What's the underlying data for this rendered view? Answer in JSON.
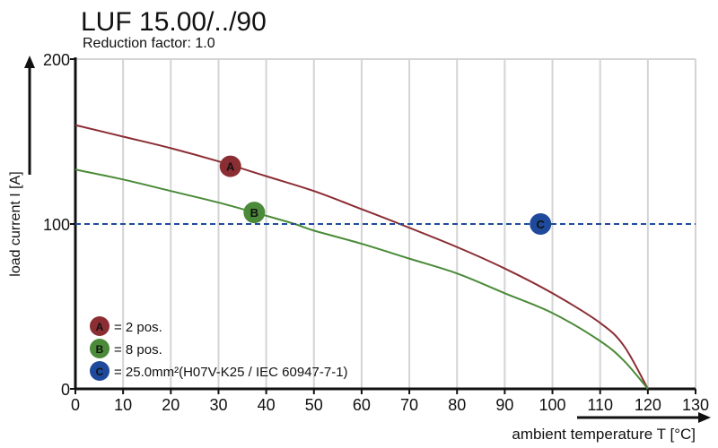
{
  "chart_data": {
    "type": "line",
    "title": "LUF 15.00/../90",
    "subtitle": "Reduction factor: 1.0",
    "xlabel": "ambient temperature T [°C]",
    "ylabel": "load current I [A]",
    "xlim": [
      0,
      130
    ],
    "ylim": [
      0,
      200
    ],
    "xticks": [
      0,
      10,
      20,
      30,
      40,
      50,
      60,
      70,
      80,
      90,
      100,
      110,
      120,
      130
    ],
    "yticks": [
      0,
      100,
      200
    ],
    "grid": "vertical",
    "series": [
      {
        "name": "A",
        "color": "#8b2e34",
        "points": [
          [
            0,
            160
          ],
          [
            10,
            153
          ],
          [
            20,
            146
          ],
          [
            30,
            138
          ],
          [
            40,
            129
          ],
          [
            50,
            120
          ],
          [
            60,
            109
          ],
          [
            68,
            100
          ],
          [
            80,
            86
          ],
          [
            90,
            73
          ],
          [
            100,
            58
          ],
          [
            110,
            40
          ],
          [
            115,
            26
          ],
          [
            120,
            0
          ]
        ],
        "marker": [
          32.5,
          135
        ]
      },
      {
        "name": "B",
        "color": "#4a8a38",
        "points": [
          [
            0,
            133
          ],
          [
            10,
            127
          ],
          [
            20,
            120
          ],
          [
            30,
            113
          ],
          [
            40,
            105
          ],
          [
            46,
            100
          ],
          [
            50,
            96
          ],
          [
            60,
            88
          ],
          [
            70,
            79
          ],
          [
            80,
            70
          ],
          [
            90,
            58
          ],
          [
            100,
            46
          ],
          [
            110,
            29
          ],
          [
            115,
            17
          ],
          [
            120,
            0
          ]
        ],
        "marker": [
          37.5,
          107
        ]
      },
      {
        "name": "C",
        "color": "#1f4a9c",
        "hline": 100,
        "marker": [
          97.5,
          100
        ]
      }
    ],
    "legend": [
      {
        "key": "A",
        "text": "= 2 pos.",
        "color": "#8b2e34"
      },
      {
        "key": "B",
        "text": "= 8 pos.",
        "color": "#4a8a38"
      },
      {
        "key": "C",
        "text": "= 25.0mm²(H07V-K25 / IEC 60947-7-1)",
        "color": "#1f4a9c"
      }
    ],
    "legend_placement": "bottom-left"
  }
}
